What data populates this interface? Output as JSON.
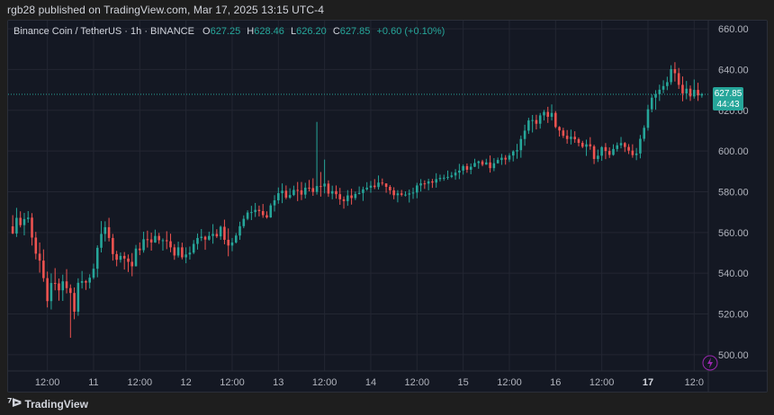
{
  "header": {
    "published": "rgb28 published on TradingView.com, Mar 17, 2025 13:15 UTC-4"
  },
  "legend": {
    "symbol": "Binance Coin / TetherUS · 1h · BINANCE",
    "o_label": "O",
    "o": "627.25",
    "h_label": "H",
    "h": "628.46",
    "l_label": "L",
    "l": "626.20",
    "c_label": "C",
    "c": "627.85",
    "change": "+0.60 (+0.10%)"
  },
  "price_badge": {
    "price": "627.85",
    "countdown": "44:43"
  },
  "footer": {
    "brand": "TradingView",
    "logo": "tradingview-logo-icon"
  },
  "colors": {
    "up": "#26a69a",
    "down": "#ef5350",
    "background": "#141823",
    "grid": "#232632",
    "axis_text": "#b2b5be",
    "price_line": "#26a69a"
  },
  "chart_data": {
    "type": "candlestick",
    "symbol": "Binance Coin / TetherUS",
    "interval": "1h",
    "exchange": "BINANCE",
    "ylim": [
      492,
      664
    ],
    "yticks": [
      500,
      520,
      540,
      560,
      580,
      600,
      620,
      640,
      660
    ],
    "ytick_labels": [
      "500.00",
      "520.00",
      "540.00",
      "560.00",
      "580.00",
      "600.00",
      "620.00",
      "640.00",
      "660.00"
    ],
    "xticks": [
      {
        "label": "12:00",
        "i": 9
      },
      {
        "label": "11",
        "i": 21
      },
      {
        "label": "12:00",
        "i": 33
      },
      {
        "label": "12",
        "i": 45
      },
      {
        "label": "12:00",
        "i": 57
      },
      {
        "label": "13",
        "i": 69
      },
      {
        "label": "12:00",
        "i": 81
      },
      {
        "label": "14",
        "i": 93
      },
      {
        "label": "12:00",
        "i": 105
      },
      {
        "label": "15",
        "i": 117
      },
      {
        "label": "12:00",
        "i": 129
      },
      {
        "label": "16",
        "i": 141
      },
      {
        "label": "12:00",
        "i": 153
      },
      {
        "label": "17",
        "i": 165
      },
      {
        "label": "12:0",
        "i": 177
      }
    ],
    "last_price": 627.85,
    "candles": [
      [
        563.0,
        568.5,
        559.2,
        559.5
      ],
      [
        559.5,
        572.1,
        557.8,
        567.2
      ],
      [
        567.2,
        570.4,
        562.5,
        563.6
      ],
      [
        563.6,
        569.6,
        558.6,
        566.6
      ],
      [
        566.6,
        570.5,
        564.8,
        567.3
      ],
      [
        567.3,
        569.5,
        553.6,
        557.5
      ],
      [
        557.5,
        560.3,
        546.8,
        549.6
      ],
      [
        549.6,
        555.1,
        540.3,
        546.2
      ],
      [
        546.2,
        551.7,
        535.8,
        537.6
      ],
      [
        537.6,
        540.8,
        523.2,
        526.3
      ],
      [
        526.3,
        539.9,
        522.2,
        535.2
      ],
      [
        535.2,
        542.5,
        531.6,
        535.0
      ],
      [
        535.0,
        537.4,
        526.5,
        531.6
      ],
      [
        531.6,
        539.3,
        526.4,
        536.0
      ],
      [
        536.0,
        542.0,
        530.1,
        532.7
      ],
      [
        532.7,
        534.5,
        508.3,
        530.3
      ],
      [
        530.3,
        533.0,
        517.4,
        521.1
      ],
      [
        521.1,
        537.5,
        519.1,
        535.3
      ],
      [
        535.3,
        541.1,
        532.5,
        536.1
      ],
      [
        536.1,
        536.7,
        531.8,
        535.4
      ],
      [
        535.4,
        539.5,
        532.5,
        537.8
      ],
      [
        537.8,
        544.7,
        537.0,
        542.2
      ],
      [
        542.2,
        553.7,
        538.0,
        552.5
      ],
      [
        552.5,
        565.6,
        550.2,
        559.3
      ],
      [
        559.3,
        565.5,
        555.6,
        562.6
      ],
      [
        562.6,
        567.2,
        555.6,
        557.3
      ],
      [
        557.3,
        559.3,
        546.2,
        549.4
      ],
      [
        549.4,
        551.0,
        543.4,
        546.6
      ],
      [
        546.6,
        550.2,
        545.2,
        548.5
      ],
      [
        548.5,
        550.4,
        541.8,
        547.2
      ],
      [
        547.2,
        549.2,
        540.6,
        545.6
      ],
      [
        545.6,
        549.9,
        538.5,
        543.4
      ],
      [
        543.4,
        553.9,
        543.3,
        552.1
      ],
      [
        552.1,
        555.1,
        548.9,
        551.3
      ],
      [
        551.3,
        560.4,
        550.1,
        556.7
      ],
      [
        556.7,
        560.9,
        552.6,
        556.6
      ],
      [
        556.6,
        559.9,
        551.1,
        555.1
      ],
      [
        555.1,
        561.4,
        554.9,
        558.3
      ],
      [
        558.3,
        559.8,
        554.4,
        556.2
      ],
      [
        556.2,
        557.1,
        551.1,
        556.2
      ],
      [
        556.2,
        560.6,
        551.8,
        555.7
      ],
      [
        555.7,
        559.4,
        550.3,
        552.7
      ],
      [
        552.7,
        554.3,
        546.6,
        548.7
      ],
      [
        548.7,
        555.5,
        547.7,
        552.7
      ],
      [
        552.7,
        555.0,
        546.8,
        547.8
      ],
      [
        547.8,
        552.7,
        544.9,
        549.2
      ],
      [
        549.2,
        553.1,
        546.7,
        550.1
      ],
      [
        550.1,
        556.3,
        549.4,
        554.4
      ],
      [
        554.4,
        559.5,
        551.6,
        557.3
      ],
      [
        557.3,
        561.7,
        555.8,
        557.9
      ],
      [
        557.9,
        558.4,
        551.5,
        556.5
      ],
      [
        556.5,
        560.4,
        556.0,
        558.3
      ],
      [
        558.3,
        564.1,
        554.5,
        559.3
      ],
      [
        559.3,
        561.6,
        557.3,
        558.1
      ],
      [
        558.1,
        563.4,
        556.4,
        562.8
      ],
      [
        562.8,
        566.3,
        554.2,
        556.4
      ],
      [
        556.4,
        562.0,
        548.3,
        553.6
      ],
      [
        553.6,
        557.3,
        550.8,
        555.1
      ],
      [
        555.1,
        559.7,
        554.6,
        558.5
      ],
      [
        558.5,
        565.3,
        556.4,
        563.1
      ],
      [
        563.1,
        568.4,
        562.1,
        566.7
      ],
      [
        566.7,
        570.9,
        566.0,
        569.8
      ],
      [
        569.8,
        573.1,
        566.1,
        570.0
      ],
      [
        570.0,
        574.5,
        567.6,
        571.1
      ],
      [
        571.1,
        573.2,
        567.9,
        570.5
      ],
      [
        570.5,
        574.0,
        567.2,
        568.5
      ],
      [
        568.5,
        570.4,
        566.8,
        567.4
      ],
      [
        567.4,
        574.3,
        567.2,
        573.3
      ],
      [
        573.3,
        578.3,
        570.3,
        575.8
      ],
      [
        575.8,
        582.1,
        574.1,
        579.3
      ],
      [
        579.3,
        584.1,
        574.4,
        580.5
      ],
      [
        580.5,
        583.1,
        576.3,
        577.1
      ],
      [
        577.1,
        581.7,
        576.5,
        578.4
      ],
      [
        578.4,
        583.0,
        577.9,
        580.9
      ],
      [
        580.9,
        584.8,
        575.4,
        580.7
      ],
      [
        580.7,
        584.8,
        575.9,
        578.6
      ],
      [
        578.6,
        584.4,
        576.7,
        582.0
      ],
      [
        582.0,
        585.8,
        580.2,
        581.8
      ],
      [
        581.8,
        586.6,
        578.0,
        579.9
      ],
      [
        579.9,
        614.3,
        578.6,
        582.8
      ],
      [
        582.8,
        589.7,
        577.6,
        582.6
      ],
      [
        582.6,
        595.8,
        579.2,
        584.0
      ],
      [
        584.0,
        585.6,
        577.5,
        579.1
      ],
      [
        579.1,
        583.0,
        576.3,
        580.3
      ],
      [
        580.3,
        583.1,
        576.6,
        578.8
      ],
      [
        578.8,
        581.9,
        573.6,
        576.3
      ],
      [
        576.3,
        577.7,
        571.7,
        575.4
      ],
      [
        575.4,
        580.8,
        573.1,
        578.2
      ],
      [
        578.2,
        581.5,
        573.7,
        576.9
      ],
      [
        576.9,
        580.1,
        575.9,
        578.9
      ],
      [
        578.9,
        582.6,
        578.7,
        579.4
      ],
      [
        579.4,
        582.5,
        575.5,
        581.2
      ],
      [
        581.2,
        584.7,
        580.5,
        582.0
      ],
      [
        582.0,
        585.3,
        579.5,
        583.0
      ],
      [
        583.0,
        586.2,
        581.3,
        582.3
      ],
      [
        582.3,
        588.0,
        581.1,
        584.5
      ],
      [
        584.5,
        586.5,
        583.1,
        584.1
      ],
      [
        584.1,
        584.1,
        579.5,
        582.4
      ],
      [
        582.4,
        583.3,
        578.7,
        580.7
      ],
      [
        580.7,
        582.2,
        576.3,
        578.3
      ],
      [
        578.3,
        580.8,
        574.8,
        579.2
      ],
      [
        579.2,
        580.9,
        577.7,
        578.5
      ],
      [
        578.5,
        580.2,
        577.7,
        578.6
      ],
      [
        578.6,
        581.1,
        574.7,
        579.2
      ],
      [
        579.2,
        582.0,
        576.5,
        579.6
      ],
      [
        579.6,
        584.4,
        576.8,
        583.1
      ],
      [
        583.1,
        586.2,
        580.1,
        584.1
      ],
      [
        584.1,
        585.6,
        581.4,
        584.0
      ],
      [
        584.0,
        586.4,
        580.7,
        585.1
      ],
      [
        585.1,
        586.3,
        581.9,
        584.5
      ],
      [
        584.5,
        589.1,
        582.0,
        586.2
      ],
      [
        586.2,
        588.4,
        585.0,
        586.8
      ],
      [
        586.8,
        588.4,
        585.4,
        586.9
      ],
      [
        586.9,
        590.4,
        585.9,
        587.3
      ],
      [
        587.3,
        589.7,
        586.7,
        588.0
      ],
      [
        588.0,
        591.1,
        585.9,
        589.4
      ],
      [
        589.4,
        593.7,
        586.2,
        590.4
      ],
      [
        590.4,
        593.4,
        588.4,
        592.6
      ],
      [
        592.6,
        593.9,
        589.3,
        590.8
      ],
      [
        590.8,
        593.9,
        588.6,
        592.3
      ],
      [
        592.3,
        596.2,
        592.1,
        594.1
      ],
      [
        594.1,
        595.3,
        591.3,
        594.9
      ],
      [
        594.9,
        595.7,
        592.5,
        593.3
      ],
      [
        593.3,
        596.2,
        593.3,
        594.4
      ],
      [
        594.4,
        597.8,
        589.4,
        591.6
      ],
      [
        591.6,
        596.5,
        590.1,
        594.0
      ],
      [
        594.0,
        596.8,
        593.8,
        595.6
      ],
      [
        595.6,
        598.6,
        593.2,
        596.7
      ],
      [
        596.7,
        598.0,
        593.3,
        595.8
      ],
      [
        595.8,
        598.9,
        594.6,
        597.8
      ],
      [
        597.8,
        600.4,
        594.9,
        599.8
      ],
      [
        599.8,
        603.5,
        596.2,
        600.4
      ],
      [
        600.4,
        607.6,
        596.7,
        605.9
      ],
      [
        605.9,
        612.9,
        602.6,
        610.0
      ],
      [
        610.0,
        616.3,
        608.4,
        615.0
      ],
      [
        615.0,
        617.7,
        609.1,
        615.2
      ],
      [
        615.2,
        617.8,
        610.6,
        613.4
      ],
      [
        613.4,
        618.7,
        611.0,
        617.5
      ],
      [
        617.5,
        620.2,
        615.0,
        619.2
      ],
      [
        619.2,
        621.7,
        613.8,
        616.8
      ],
      [
        616.8,
        622.9,
        615.0,
        618.7
      ],
      [
        618.7,
        619.6,
        611.2,
        611.8
      ],
      [
        611.8,
        612.2,
        607.1,
        610.1
      ],
      [
        610.1,
        611.4,
        606.4,
        607.5
      ],
      [
        607.5,
        610.3,
        603.6,
        605.9
      ],
      [
        605.9,
        610.5,
        603.2,
        607.0
      ],
      [
        607.0,
        609.7,
        604.0,
        605.8
      ],
      [
        605.8,
        606.6,
        602.3,
        604.0
      ],
      [
        604.0,
        605.0,
        601.4,
        602.1
      ],
      [
        602.1,
        605.6,
        597.6,
        603.3
      ],
      [
        603.3,
        606.8,
        600.6,
        602.3
      ],
      [
        602.3,
        603.1,
        593.6,
        596.1
      ],
      [
        596.1,
        600.7,
        594.6,
        597.7
      ],
      [
        597.7,
        602.4,
        595.2,
        601.9
      ],
      [
        601.9,
        603.9,
        596.0,
        600.0
      ],
      [
        600.0,
        601.8,
        596.6,
        598.1
      ],
      [
        598.1,
        603.3,
        597.7,
        601.0
      ],
      [
        601.0,
        604.2,
        599.7,
        602.8
      ],
      [
        602.8,
        606.9,
        601.3,
        603.9
      ],
      [
        603.9,
        604.4,
        599.5,
        602.0
      ],
      [
        602.0,
        603.4,
        598.5,
        600.2
      ],
      [
        600.2,
        603.3,
        596.7,
        598.0
      ],
      [
        598.0,
        601.5,
        595.5,
        598.8
      ],
      [
        598.8,
        607.9,
        596.4,
        606.0
      ],
      [
        606.0,
        612.6,
        604.7,
        611.4
      ],
      [
        611.4,
        622.7,
        610.0,
        620.5
      ],
      [
        620.5,
        627.7,
        619.0,
        626.2
      ],
      [
        626.2,
        629.9,
        620.3,
        627.9
      ],
      [
        627.9,
        632.6,
        624.6,
        630.1
      ],
      [
        630.1,
        634.7,
        628.4,
        631.9
      ],
      [
        631.9,
        636.5,
        629.9,
        633.8
      ],
      [
        633.8,
        642.1,
        632.5,
        640.2
      ],
      [
        640.2,
        643.6,
        634.1,
        638.2
      ],
      [
        638.2,
        640.8,
        630.5,
        632.5
      ],
      [
        632.5,
        636.6,
        624.4,
        628.3
      ],
      [
        628.3,
        634.4,
        625.4,
        630.6
      ],
      [
        630.6,
        632.2,
        624.6,
        626.8
      ],
      [
        626.8,
        635.1,
        625.7,
        630.0
      ],
      [
        630.0,
        633.5,
        624.6,
        627.3
      ],
      [
        627.3,
        628.5,
        626.2,
        627.9
      ]
    ]
  }
}
